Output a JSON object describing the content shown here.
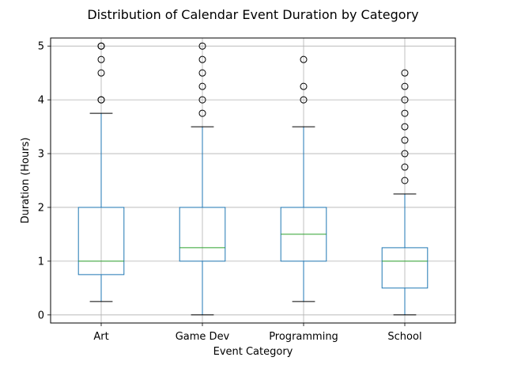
{
  "chart_data": {
    "type": "boxplot",
    "title": "Distribution of Calendar Event Duration by Category",
    "xlabel": "Event Category",
    "ylabel": "Duration (Hours)",
    "ylim": [
      -0.15,
      5.15
    ],
    "yticks": [
      0,
      1,
      2,
      3,
      4,
      5
    ],
    "grid": true,
    "categories": [
      "Art",
      "Game Dev",
      "Programming",
      "School"
    ],
    "boxes": [
      {
        "category": "Art",
        "whisker_low": 0.25,
        "q1": 0.75,
        "median": 1.0,
        "q3": 2.0,
        "whisker_high": 3.75,
        "outliers": [
          4.0,
          4.0,
          4.5,
          4.75,
          5.0,
          5.0
        ]
      },
      {
        "category": "Game Dev",
        "whisker_low": 0.0,
        "q1": 1.0,
        "median": 1.25,
        "q3": 2.0,
        "whisker_high": 3.5,
        "outliers": [
          3.75,
          4.0,
          4.25,
          4.5,
          4.75,
          5.0
        ]
      },
      {
        "category": "Programming",
        "whisker_low": 0.25,
        "q1": 1.0,
        "median": 1.5,
        "q3": 2.0,
        "whisker_high": 3.5,
        "outliers": [
          4.0,
          4.25,
          4.75
        ]
      },
      {
        "category": "School",
        "whisker_low": 0.0,
        "q1": 0.5,
        "median": 1.0,
        "q3": 1.25,
        "whisker_high": 2.25,
        "outliers": [
          2.5,
          2.75,
          3.0,
          3.25,
          3.5,
          3.75,
          4.0,
          4.25,
          4.5
        ]
      }
    ],
    "colors": {
      "box": "#1f77b4",
      "median": "#2ca02c",
      "whisker": "#1f77b4",
      "cap": "#000000",
      "outlier": "#000000",
      "grid": "#b0b0b0"
    }
  }
}
